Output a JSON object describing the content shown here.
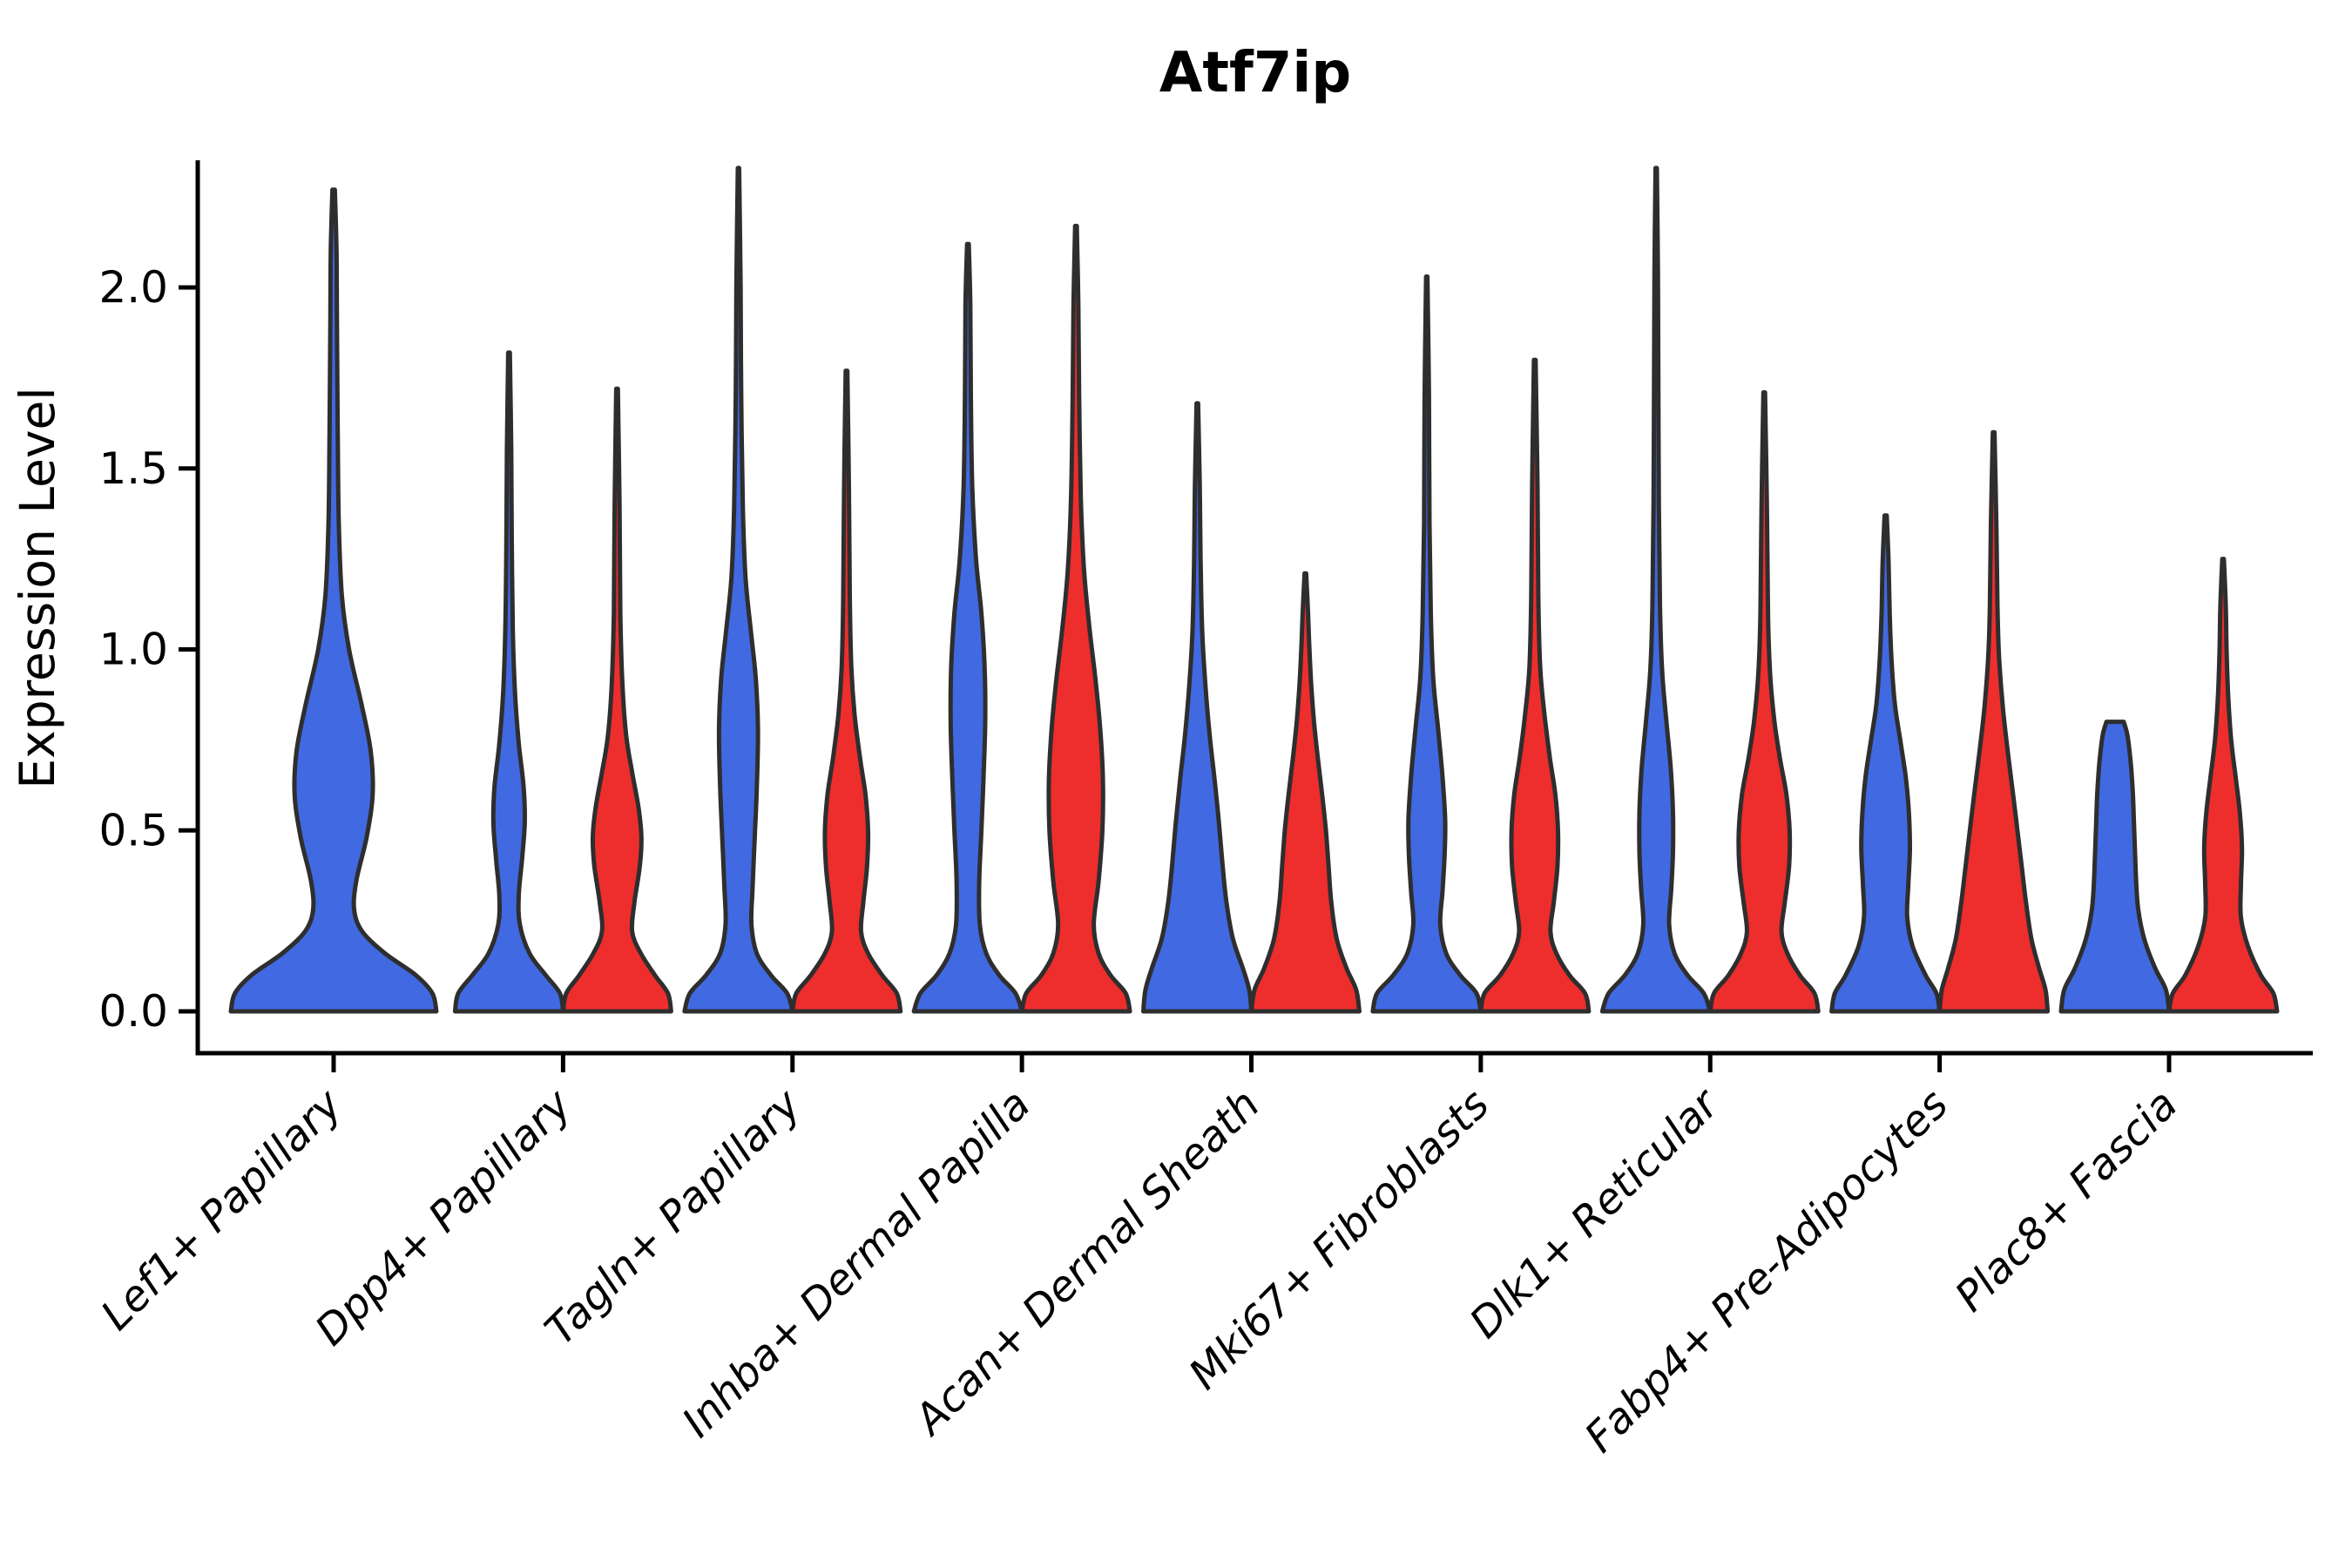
{
  "title": "Atf7ip",
  "ylabel": "Expression Level",
  "yticks": [
    {
      "value": 0.0,
      "label": "0.0"
    },
    {
      "value": 0.5,
      "label": "0.5"
    },
    {
      "value": 1.0,
      "label": "1.0"
    },
    {
      "value": 1.5,
      "label": "1.5"
    },
    {
      "value": 2.0,
      "label": "2.0"
    }
  ],
  "categories": [
    "Lef1+ Papillary",
    "Dpp4+ Papillary",
    "Tagln+ Papillary",
    "Inhba+ Dermal Papilla",
    "Acan+ Dermal Sheath",
    "Mki67+ Fibroblasts",
    "Dlk1+ Reticular",
    "Fabp4+ Pre-Adipocytes",
    "Plac8+ Fascia"
  ],
  "colors": {
    "blue": "#4169E1",
    "red": "#EE2D2D",
    "outline": "#2E2E2E",
    "axis": "#000000"
  },
  "chart_data": {
    "type": "violin",
    "title": "Atf7ip",
    "xlabel": "",
    "ylabel": "Expression Level",
    "ylim": [
      0,
      2.35
    ],
    "yticks": [
      0.0,
      0.5,
      1.0,
      1.5,
      2.0
    ],
    "grid": false,
    "legend": "none",
    "categories": [
      "Lef1+ Papillary",
      "Dpp4+ Papillary",
      "Tagln+ Papillary",
      "Inhba+ Dermal Papilla",
      "Acan+ Dermal Sheath",
      "Mki67+ Fibroblasts",
      "Dlk1+ Reticular",
      "Fabp4+ Pre-Adipocytes",
      "Plac8+ Fascia"
    ],
    "series": [
      {
        "name": "blue",
        "color": "#4169E1",
        "max_expression": [
          2.27,
          1.82,
          2.33,
          2.12,
          1.68,
          2.03,
          2.33,
          1.37,
          0.8
        ]
      },
      {
        "name": "red",
        "color": "#EE2D2D",
        "max_expression": [
          null,
          1.72,
          1.77,
          2.17,
          1.21,
          1.8,
          1.71,
          1.6,
          1.25
        ]
      }
    ],
    "violins": [
      {
        "category": "Lef1+ Papillary",
        "hue": "blue",
        "single": true,
        "max": 2.27,
        "profile": [
          [
            0,
            1
          ],
          [
            0.05,
            0.96
          ],
          [
            0.1,
            0.8
          ],
          [
            0.16,
            0.5
          ],
          [
            0.22,
            0.28
          ],
          [
            0.28,
            0.2
          ],
          [
            0.36,
            0.22
          ],
          [
            0.48,
            0.32
          ],
          [
            0.6,
            0.38
          ],
          [
            0.72,
            0.36
          ],
          [
            0.85,
            0.27
          ],
          [
            1.0,
            0.15
          ],
          [
            1.15,
            0.08
          ],
          [
            1.35,
            0.05
          ],
          [
            1.6,
            0.04
          ],
          [
            1.9,
            0.032
          ],
          [
            2.1,
            0.028
          ],
          [
            2.27,
            0.012
          ]
        ]
      },
      {
        "category": "Dpp4+ Papillary",
        "hue": "blue",
        "single": false,
        "max": 1.82,
        "profile": [
          [
            0,
            1
          ],
          [
            0.05,
            0.94
          ],
          [
            0.1,
            0.68
          ],
          [
            0.16,
            0.38
          ],
          [
            0.24,
            0.2
          ],
          [
            0.32,
            0.18
          ],
          [
            0.42,
            0.24
          ],
          [
            0.52,
            0.29
          ],
          [
            0.62,
            0.27
          ],
          [
            0.74,
            0.18
          ],
          [
            0.88,
            0.11
          ],
          [
            1.05,
            0.07
          ],
          [
            1.3,
            0.05
          ],
          [
            1.55,
            0.04
          ],
          [
            1.82,
            0.015
          ]
        ]
      },
      {
        "category": "Dpp4+ Papillary",
        "hue": "red",
        "single": false,
        "max": 1.72,
        "profile": [
          [
            0,
            1
          ],
          [
            0.05,
            0.94
          ],
          [
            0.1,
            0.7
          ],
          [
            0.16,
            0.44
          ],
          [
            0.22,
            0.28
          ],
          [
            0.3,
            0.32
          ],
          [
            0.4,
            0.42
          ],
          [
            0.48,
            0.45
          ],
          [
            0.56,
            0.4
          ],
          [
            0.66,
            0.28
          ],
          [
            0.76,
            0.17
          ],
          [
            0.9,
            0.1
          ],
          [
            1.1,
            0.06
          ],
          [
            1.4,
            0.045
          ],
          [
            1.72,
            0.015
          ]
        ]
      },
      {
        "category": "Tagln+ Papillary",
        "hue": "blue",
        "single": false,
        "max": 2.33,
        "profile": [
          [
            0,
            1
          ],
          [
            0.05,
            0.9
          ],
          [
            0.1,
            0.6
          ],
          [
            0.16,
            0.34
          ],
          [
            0.24,
            0.24
          ],
          [
            0.34,
            0.26
          ],
          [
            0.48,
            0.3
          ],
          [
            0.62,
            0.34
          ],
          [
            0.78,
            0.36
          ],
          [
            0.92,
            0.32
          ],
          [
            1.05,
            0.23
          ],
          [
            1.2,
            0.13
          ],
          [
            1.4,
            0.08
          ],
          [
            1.7,
            0.05
          ],
          [
            2.0,
            0.04
          ],
          [
            2.33,
            0.012
          ]
        ]
      },
      {
        "category": "Tagln+ Papillary",
        "hue": "red",
        "single": false,
        "max": 1.77,
        "profile": [
          [
            0,
            1
          ],
          [
            0.05,
            0.93
          ],
          [
            0.1,
            0.66
          ],
          [
            0.16,
            0.4
          ],
          [
            0.22,
            0.27
          ],
          [
            0.3,
            0.31
          ],
          [
            0.4,
            0.38
          ],
          [
            0.5,
            0.4
          ],
          [
            0.6,
            0.35
          ],
          [
            0.7,
            0.25
          ],
          [
            0.82,
            0.15
          ],
          [
            0.95,
            0.09
          ],
          [
            1.15,
            0.06
          ],
          [
            1.45,
            0.045
          ],
          [
            1.77,
            0.015
          ]
        ]
      },
      {
        "category": "Inhba+ Dermal Papilla",
        "hue": "blue",
        "single": false,
        "max": 2.12,
        "profile": [
          [
            0,
            1
          ],
          [
            0.05,
            0.88
          ],
          [
            0.1,
            0.58
          ],
          [
            0.16,
            0.34
          ],
          [
            0.24,
            0.22
          ],
          [
            0.36,
            0.21
          ],
          [
            0.5,
            0.25
          ],
          [
            0.65,
            0.29
          ],
          [
            0.8,
            0.32
          ],
          [
            0.95,
            0.31
          ],
          [
            1.1,
            0.25
          ],
          [
            1.25,
            0.15
          ],
          [
            1.45,
            0.08
          ],
          [
            1.7,
            0.055
          ],
          [
            1.95,
            0.045
          ],
          [
            2.12,
            0.015
          ]
        ]
      },
      {
        "category": "Inhba+ Dermal Papilla",
        "hue": "red",
        "single": false,
        "max": 2.17,
        "profile": [
          [
            0,
            1
          ],
          [
            0.05,
            0.92
          ],
          [
            0.1,
            0.64
          ],
          [
            0.16,
            0.42
          ],
          [
            0.24,
            0.33
          ],
          [
            0.36,
            0.42
          ],
          [
            0.5,
            0.49
          ],
          [
            0.64,
            0.5
          ],
          [
            0.78,
            0.45
          ],
          [
            0.92,
            0.36
          ],
          [
            1.06,
            0.25
          ],
          [
            1.22,
            0.15
          ],
          [
            1.42,
            0.09
          ],
          [
            1.7,
            0.06
          ],
          [
            1.95,
            0.045
          ],
          [
            2.17,
            0.015
          ]
        ]
      },
      {
        "category": "Acan+ Dermal Sheath",
        "hue": "blue",
        "single": false,
        "max": 1.68,
        "profile": [
          [
            0,
            1
          ],
          [
            0.06,
            0.96
          ],
          [
            0.12,
            0.84
          ],
          [
            0.2,
            0.66
          ],
          [
            0.3,
            0.54
          ],
          [
            0.4,
            0.47
          ],
          [
            0.52,
            0.4
          ],
          [
            0.64,
            0.32
          ],
          [
            0.76,
            0.23
          ],
          [
            0.9,
            0.15
          ],
          [
            1.05,
            0.09
          ],
          [
            1.25,
            0.06
          ],
          [
            1.45,
            0.045
          ],
          [
            1.68,
            0.015
          ]
        ]
      },
      {
        "category": "Acan+ Dermal Sheath",
        "hue": "red",
        "single": false,
        "max": 1.21,
        "profile": [
          [
            0,
            1
          ],
          [
            0.06,
            0.94
          ],
          [
            0.12,
            0.76
          ],
          [
            0.2,
            0.58
          ],
          [
            0.3,
            0.48
          ],
          [
            0.4,
            0.43
          ],
          [
            0.5,
            0.38
          ],
          [
            0.6,
            0.31
          ],
          [
            0.7,
            0.23
          ],
          [
            0.8,
            0.16
          ],
          [
            0.9,
            0.11
          ],
          [
            1.0,
            0.075
          ],
          [
            1.1,
            0.05
          ],
          [
            1.21,
            0.015
          ]
        ]
      },
      {
        "category": "Mki67+ Fibroblasts",
        "hue": "blue",
        "single": false,
        "max": 2.03,
        "profile": [
          [
            0,
            1
          ],
          [
            0.05,
            0.92
          ],
          [
            0.1,
            0.62
          ],
          [
            0.16,
            0.36
          ],
          [
            0.24,
            0.25
          ],
          [
            0.33,
            0.29
          ],
          [
            0.43,
            0.33
          ],
          [
            0.53,
            0.34
          ],
          [
            0.65,
            0.29
          ],
          [
            0.78,
            0.21
          ],
          [
            0.92,
            0.12
          ],
          [
            1.1,
            0.075
          ],
          [
            1.35,
            0.05
          ],
          [
            1.7,
            0.04
          ],
          [
            2.03,
            0.012
          ]
        ]
      },
      {
        "category": "Mki67+ Fibroblasts",
        "hue": "red",
        "single": false,
        "max": 1.8,
        "profile": [
          [
            0,
            1
          ],
          [
            0.05,
            0.93
          ],
          [
            0.1,
            0.64
          ],
          [
            0.16,
            0.4
          ],
          [
            0.22,
            0.29
          ],
          [
            0.3,
            0.35
          ],
          [
            0.4,
            0.42
          ],
          [
            0.5,
            0.43
          ],
          [
            0.6,
            0.38
          ],
          [
            0.7,
            0.28
          ],
          [
            0.82,
            0.18
          ],
          [
            0.95,
            0.1
          ],
          [
            1.15,
            0.065
          ],
          [
            1.45,
            0.05
          ],
          [
            1.8,
            0.015
          ]
        ]
      },
      {
        "category": "Dlk1+ Reticular",
        "hue": "blue",
        "single": false,
        "max": 2.33,
        "profile": [
          [
            0,
            1
          ],
          [
            0.05,
            0.88
          ],
          [
            0.1,
            0.58
          ],
          [
            0.16,
            0.34
          ],
          [
            0.24,
            0.24
          ],
          [
            0.34,
            0.28
          ],
          [
            0.44,
            0.31
          ],
          [
            0.55,
            0.31
          ],
          [
            0.67,
            0.27
          ],
          [
            0.8,
            0.19
          ],
          [
            0.94,
            0.11
          ],
          [
            1.12,
            0.07
          ],
          [
            1.4,
            0.05
          ],
          [
            1.75,
            0.04
          ],
          [
            2.05,
            0.032
          ],
          [
            2.33,
            0.012
          ]
        ]
      },
      {
        "category": "Dlk1+ Reticular",
        "hue": "red",
        "single": false,
        "max": 1.71,
        "profile": [
          [
            0,
            1
          ],
          [
            0.05,
            0.93
          ],
          [
            0.1,
            0.66
          ],
          [
            0.16,
            0.43
          ],
          [
            0.22,
            0.32
          ],
          [
            0.3,
            0.38
          ],
          [
            0.4,
            0.46
          ],
          [
            0.5,
            0.47
          ],
          [
            0.6,
            0.41
          ],
          [
            0.7,
            0.29
          ],
          [
            0.8,
            0.19
          ],
          [
            0.93,
            0.11
          ],
          [
            1.1,
            0.07
          ],
          [
            1.4,
            0.05
          ],
          [
            1.71,
            0.015
          ]
        ]
      },
      {
        "category": "Fabp4+ Pre-Adipocytes",
        "hue": "blue",
        "single": false,
        "max": 1.37,
        "profile": [
          [
            0,
            1
          ],
          [
            0.05,
            0.94
          ],
          [
            0.1,
            0.74
          ],
          [
            0.18,
            0.5
          ],
          [
            0.26,
            0.4
          ],
          [
            0.35,
            0.42
          ],
          [
            0.45,
            0.45
          ],
          [
            0.55,
            0.43
          ],
          [
            0.65,
            0.37
          ],
          [
            0.75,
            0.27
          ],
          [
            0.85,
            0.17
          ],
          [
            0.97,
            0.11
          ],
          [
            1.1,
            0.075
          ],
          [
            1.24,
            0.055
          ],
          [
            1.37,
            0.02
          ]
        ]
      },
      {
        "category": "Fabp4+ Pre-Adipocytes",
        "hue": "red",
        "single": false,
        "max": 1.6,
        "profile": [
          [
            0,
            1
          ],
          [
            0.06,
            0.96
          ],
          [
            0.12,
            0.84
          ],
          [
            0.2,
            0.7
          ],
          [
            0.3,
            0.6
          ],
          [
            0.4,
            0.52
          ],
          [
            0.5,
            0.44
          ],
          [
            0.6,
            0.36
          ],
          [
            0.72,
            0.26
          ],
          [
            0.84,
            0.17
          ],
          [
            0.98,
            0.1
          ],
          [
            1.12,
            0.07
          ],
          [
            1.35,
            0.05
          ],
          [
            1.6,
            0.015
          ]
        ]
      },
      {
        "category": "Plac8+ Fascia",
        "hue": "blue",
        "single": false,
        "max": 0.8,
        "profile": [
          [
            0,
            1
          ],
          [
            0.06,
            0.94
          ],
          [
            0.12,
            0.74
          ],
          [
            0.2,
            0.54
          ],
          [
            0.28,
            0.43
          ],
          [
            0.36,
            0.39
          ],
          [
            0.44,
            0.37
          ],
          [
            0.52,
            0.35
          ],
          [
            0.6,
            0.33
          ],
          [
            0.67,
            0.3
          ],
          [
            0.73,
            0.26
          ],
          [
            0.77,
            0.22
          ],
          [
            0.8,
            0.16
          ]
        ]
      },
      {
        "category": "Plac8+ Fascia",
        "hue": "red",
        "single": false,
        "max": 1.25,
        "profile": [
          [
            0,
            1
          ],
          [
            0.05,
            0.93
          ],
          [
            0.1,
            0.7
          ],
          [
            0.18,
            0.46
          ],
          [
            0.26,
            0.33
          ],
          [
            0.35,
            0.33
          ],
          [
            0.45,
            0.35
          ],
          [
            0.55,
            0.31
          ],
          [
            0.65,
            0.23
          ],
          [
            0.75,
            0.15
          ],
          [
            0.87,
            0.095
          ],
          [
            1.0,
            0.065
          ],
          [
            1.12,
            0.05
          ],
          [
            1.25,
            0.015
          ]
        ]
      }
    ]
  }
}
